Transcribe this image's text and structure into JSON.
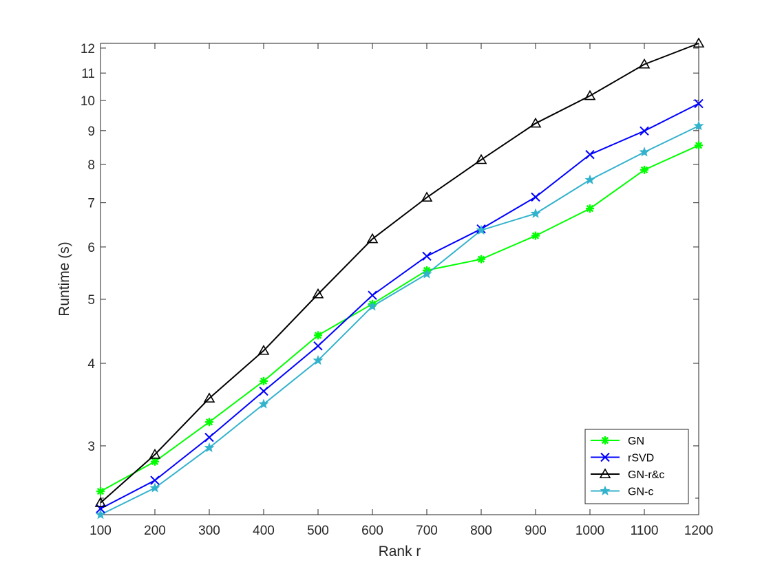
{
  "chart_data": {
    "type": "line",
    "title": "",
    "xlabel": "Rank r",
    "ylabel": "Runtime (s)",
    "x": [
      100,
      200,
      300,
      400,
      500,
      600,
      700,
      800,
      900,
      1000,
      1100,
      1200
    ],
    "xlim": [
      100,
      1200
    ],
    "ylim": [
      2.36,
      12.2
    ],
    "yscale": "log",
    "xticks": [
      100,
      200,
      300,
      400,
      500,
      600,
      700,
      800,
      900,
      1000,
      1100,
      1200
    ],
    "yticks": [
      3,
      4,
      5,
      6,
      7,
      8,
      9,
      10,
      11,
      12
    ],
    "ytick_labels": [
      "3",
      "4",
      "5",
      "6",
      "7",
      "8",
      "9",
      "10",
      "11",
      "12"
    ],
    "minor_yticks": [
      2.5
    ],
    "grid": false,
    "legend": {
      "position": "bottom-right"
    },
    "series": [
      {
        "name": "GN",
        "color": "#00ff00",
        "marker": "asterisk",
        "values": [
          2.56,
          2.84,
          3.26,
          3.76,
          4.41,
          4.92,
          5.53,
          5.75,
          6.24,
          6.86,
          7.85,
          8.55
        ]
      },
      {
        "name": "rSVD",
        "color": "#0000ff",
        "marker": "x",
        "values": [
          2.41,
          2.66,
          3.09,
          3.63,
          4.25,
          5.07,
          5.81,
          6.39,
          7.14,
          8.28,
          8.99,
          9.89
        ]
      },
      {
        "name": "GN-r&c",
        "color": "#000000",
        "marker": "triangle",
        "values": [
          2.46,
          2.91,
          3.54,
          4.18,
          5.09,
          6.17,
          7.13,
          8.13,
          9.23,
          10.16,
          11.34,
          12.2
        ]
      },
      {
        "name": "GN-c",
        "color": "#33b2cc",
        "marker": "star",
        "values": [
          2.36,
          2.59,
          2.98,
          3.47,
          4.04,
          4.88,
          5.46,
          6.36,
          6.74,
          7.58,
          8.35,
          9.15
        ]
      }
    ]
  }
}
